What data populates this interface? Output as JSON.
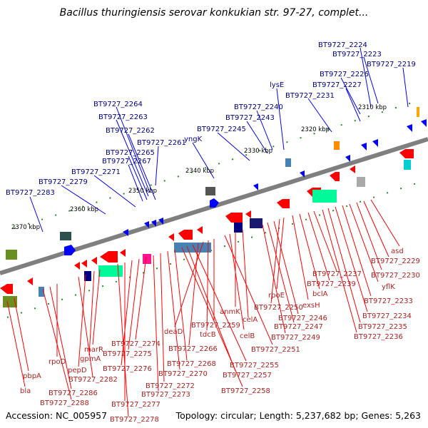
{
  "title": "Bacillus thuringiensis serovar konkukian str. 97-27, complet...",
  "footer": {
    "accession": "Accession: NC_005957",
    "topology": "Topology: circular; Length: 5,237,682 bp; Genes: 5,263"
  },
  "colors": {
    "backbone": "#7f7f7f",
    "forward_gene": "#0000ff",
    "reverse_gene": "#ff0000",
    "tick_mark": "#228b22",
    "blue_label": "#00008b",
    "red_label": "#b22222"
  },
  "scale_labels": [
    "2310 kbp",
    "2320 kbp",
    "2330 kbp",
    "2340 kbp",
    "2350 kbp",
    "2360 kbp",
    "2370 kbp"
  ],
  "blue_labels": [
    "BT9727_2224",
    "BT9727_2223",
    "BT9727_2219",
    "BT9727_2226",
    "BT9727_2227",
    "lysE",
    "BT9727_2231",
    "BT9727_2240",
    "BT9727_2243",
    "BT9727_2245",
    "yngK",
    "BT9727_2264",
    "BT9727_2263",
    "BT9727_2262",
    "BT9727_2261",
    "BT9727_2265",
    "BT9727_2267",
    "BT9727_2271",
    "BT9727_2279",
    "BT9727_2283"
  ],
  "red_labels": [
    "asd",
    "BT9727_2229",
    "BT9727_2230",
    "yflK",
    "BT9727_2233",
    "BT9727_2234",
    "BT9727_2235",
    "BT9727_2236",
    "BT9727_2237",
    "BT9727_2239",
    "bclA",
    "exsH",
    "rpoE",
    "BT9727_2250",
    "BT9727_2246",
    "BT9727_2247",
    "BT9727_2249",
    "celA",
    "anmK",
    "celB",
    "BT9727_2251",
    "BT9727_2259",
    "tdcB",
    "deaD",
    "BT9727_2266",
    "BT9727_2255",
    "BT9727_2257",
    "BT9727_2258",
    "BT9727_2268",
    "BT9727_2270",
    "BT9727_2272",
    "BT9727_2273",
    "BT9727_2274",
    "BT9727_2275",
    "BT9727_2276",
    "BT9727_2277",
    "BT9727_2278",
    "marR",
    "gpmA",
    "pepD",
    "BT9727_2282",
    "rpoD",
    "BT9727_2286",
    "BT9727_2288",
    "pbpA",
    "bla"
  ]
}
